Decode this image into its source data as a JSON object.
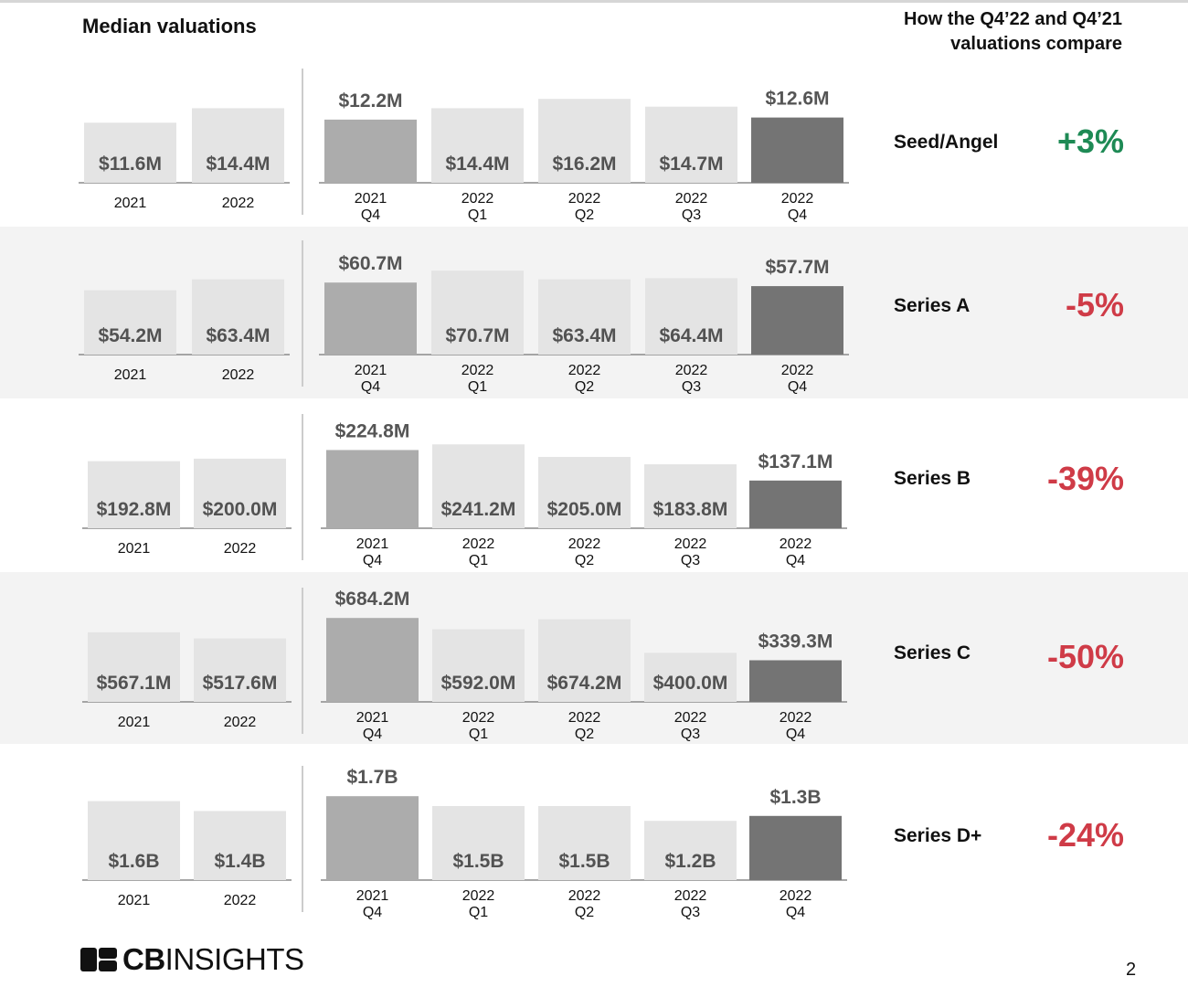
{
  "header": {
    "title": "Median valuations",
    "compare_line1": "How the Q4’22 and Q4’21",
    "compare_line2": "valuations compare"
  },
  "colors": {
    "light_bar": "#e4e4e4",
    "q4_2021_bar": "#acacac",
    "q4_2022_bar": "#747474",
    "positive": "#1e8a55",
    "negative": "#cf3b47"
  },
  "chart_data": {
    "type": "bar",
    "annual_categories": [
      "2021",
      "2022"
    ],
    "quarter_categories": [
      [
        "2021",
        "Q4"
      ],
      [
        "2022",
        "Q1"
      ],
      [
        "2022",
        "Q2"
      ],
      [
        "2022",
        "Q3"
      ],
      [
        "2022",
        "Q4"
      ]
    ],
    "series": [
      {
        "name": "Seed/Angel",
        "unit": "M",
        "annual_values": [
          11.6,
          14.4
        ],
        "annual_labels": [
          "$11.6M",
          "$14.4M"
        ],
        "quarter_values": [
          12.2,
          14.4,
          16.2,
          14.7,
          12.6
        ],
        "quarter_labels": [
          "$12.2M",
          "$14.4M",
          "$16.2M",
          "$14.7M",
          "$12.6M"
        ],
        "change": "+3%",
        "change_sign": "positive"
      },
      {
        "name": "Series A",
        "unit": "M",
        "annual_values": [
          54.2,
          63.4
        ],
        "annual_labels": [
          "$54.2M",
          "$63.4M"
        ],
        "quarter_values": [
          60.7,
          70.7,
          63.4,
          64.4,
          57.7
        ],
        "quarter_labels": [
          "$60.7M",
          "$70.7M",
          "$63.4M",
          "$64.4M",
          "$57.7M"
        ],
        "change": "-5%",
        "change_sign": "negative"
      },
      {
        "name": "Series B",
        "unit": "M",
        "annual_values": [
          192.8,
          200.0
        ],
        "annual_labels": [
          "$192.8M",
          "$200.0M"
        ],
        "quarter_values": [
          224.8,
          241.2,
          205.0,
          183.8,
          137.1
        ],
        "quarter_labels": [
          "$224.8M",
          "$241.2M",
          "$205.0M",
          "$183.8M",
          "$137.1M"
        ],
        "change": "-39%",
        "change_sign": "negative"
      },
      {
        "name": "Series C",
        "unit": "M",
        "annual_values": [
          567.1,
          517.6
        ],
        "annual_labels": [
          "$567.1M",
          "$517.6M"
        ],
        "quarter_values": [
          684.2,
          592.0,
          674.2,
          400.0,
          339.3
        ],
        "quarter_labels": [
          "$684.2M",
          "$592.0M",
          "$674.2M",
          "$400.0M",
          "$339.3M"
        ],
        "change": "-50%",
        "change_sign": "negative"
      },
      {
        "name": "Series D+",
        "unit": "B",
        "annual_values": [
          1.6,
          1.4
        ],
        "annual_labels": [
          "$1.6B",
          "$1.4B"
        ],
        "quarter_values": [
          1.7,
          1.5,
          1.5,
          1.2,
          1.3
        ],
        "quarter_labels": [
          "$1.7B",
          "$1.5B",
          "$1.5B",
          "$1.2B",
          "$1.3B"
        ],
        "change": "-24%",
        "change_sign": "negative"
      }
    ]
  },
  "footer": {
    "logo_bold": "CB",
    "logo_light": "INSIGHTS",
    "page_number": "2"
  }
}
